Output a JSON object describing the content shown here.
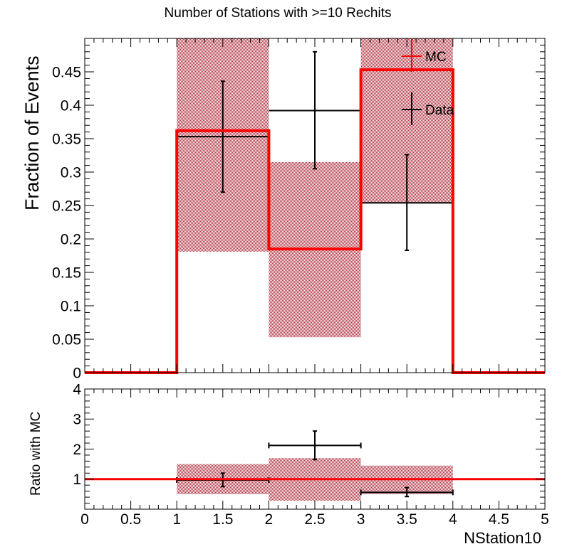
{
  "title": "Number of Stations with >=10 Rechits",
  "chart_data": [
    {
      "type": "bar",
      "panel": "main",
      "ylabel": "Fraction of Events",
      "xlabel": "NStation10",
      "xlim": [
        0,
        5
      ],
      "ylim": [
        0,
        0.5
      ],
      "yticks": [
        "0",
        "0.05",
        "0.1",
        "0.15",
        "0.2",
        "0.25",
        "0.3",
        "0.35",
        "0.4",
        "0.45"
      ],
      "xticks": [
        "0",
        "0.5",
        "1",
        "1.5",
        "2",
        "2.5",
        "3",
        "3.5",
        "4",
        "4.5",
        "5"
      ],
      "bin_edges": [
        0,
        1,
        2,
        3,
        4,
        5
      ],
      "legend": {
        "placement": "top-right",
        "entries": [
          "MC",
          "Data"
        ]
      },
      "series": [
        {
          "name": "MC",
          "color": "#ff0000",
          "style": "histogram-step",
          "values": [
            0,
            0.362,
            0.185,
            0.453,
            0
          ],
          "band_low": [
            0,
            0.181,
            0.053,
            0.254,
            0
          ],
          "band_high": [
            0,
            0.5,
            0.315,
            0.5,
            0
          ],
          "band_color": "#b03040"
        },
        {
          "name": "Data",
          "color": "#000000",
          "style": "error-bars",
          "x": [
            1.5,
            2.5,
            3.5
          ],
          "x_halfwidth": 0.5,
          "values": [
            0.353,
            0.392,
            0.254
          ],
          "err_low": [
            0.27,
            0.305,
            0.183
          ],
          "err_high": [
            0.436,
            0.48,
            0.326
          ]
        }
      ]
    },
    {
      "type": "bar",
      "panel": "ratio",
      "ylabel": "Ratio with MC",
      "xlabel": "NStation10",
      "xlim": [
        0,
        5
      ],
      "ylim": [
        0,
        4
      ],
      "yticks": [
        "1",
        "2",
        "3",
        "4"
      ],
      "reference_line": 1,
      "series": [
        {
          "name": "MC",
          "color": "#ff0000",
          "style": "band",
          "x_edges": [
            [
              1,
              2
            ],
            [
              2,
              3
            ],
            [
              3,
              4
            ]
          ],
          "band_low": [
            0.5,
            0.28,
            0.5
          ],
          "band_high": [
            1.5,
            1.7,
            1.45
          ],
          "band_color": "#b03040"
        },
        {
          "name": "Data",
          "color": "#000000",
          "style": "error-bars",
          "x": [
            1.5,
            2.5,
            3.5
          ],
          "x_halfwidth": 0.5,
          "values": [
            0.97,
            2.12,
            0.56
          ],
          "err_low": [
            0.75,
            1.65,
            0.42
          ],
          "err_high": [
            1.2,
            2.6,
            0.72
          ]
        }
      ]
    }
  ]
}
